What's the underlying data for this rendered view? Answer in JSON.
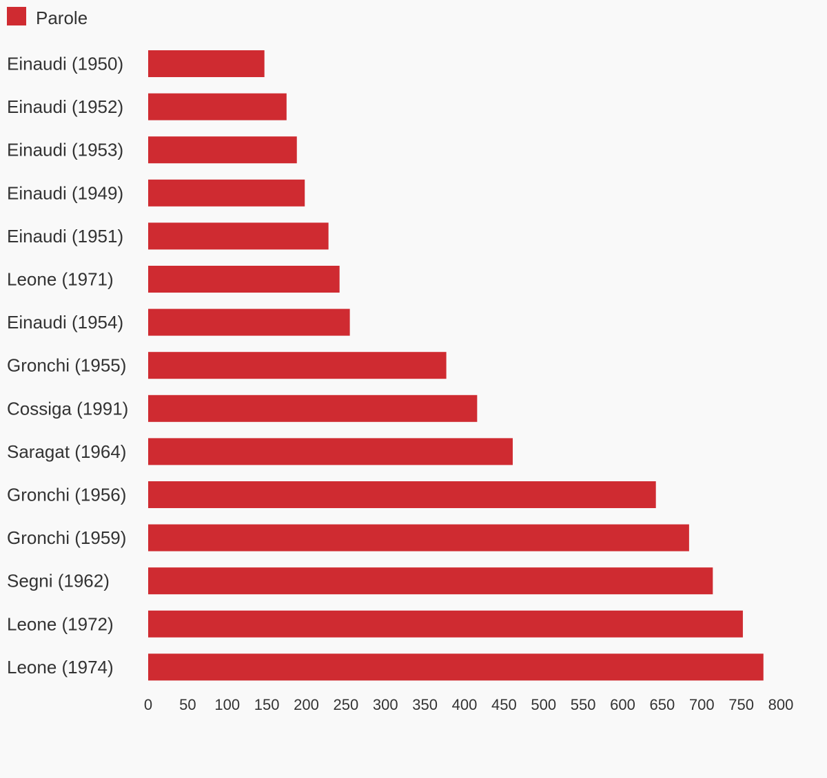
{
  "chart_data": {
    "type": "bar",
    "orientation": "horizontal",
    "categories": [
      "Einaudi (1950)",
      "Einaudi (1952)",
      "Einaudi (1953)",
      "Einaudi (1949)",
      "Einaudi (1951)",
      "Leone (1971)",
      "Einaudi (1954)",
      "Gronchi (1955)",
      "Cossiga (1991)",
      "Saragat (1964)",
      "Gronchi (1956)",
      "Gronchi (1959)",
      "Segni (1962)",
      "Leone (1972)",
      "Leone (1974)"
    ],
    "series": [
      {
        "name": "Parole",
        "color": "#cf2b31",
        "values": [
          147,
          175,
          188,
          198,
          228,
          242,
          255,
          377,
          416,
          461,
          642,
          684,
          714,
          752,
          778
        ]
      }
    ],
    "xlim": [
      0,
      800
    ],
    "xticks": [
      0,
      50,
      100,
      150,
      200,
      250,
      300,
      350,
      400,
      450,
      500,
      550,
      600,
      650,
      700,
      750,
      800
    ],
    "legend_position": "top-left",
    "grid": false,
    "title": "",
    "xlabel": "",
    "ylabel": ""
  },
  "colors": {
    "background": "#f9f9f9",
    "bar": "#cf2b31",
    "text": "#333333"
  }
}
